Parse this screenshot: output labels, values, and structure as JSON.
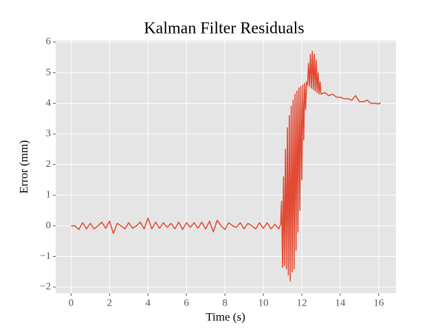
{
  "chart_data": {
    "type": "line",
    "title": "Kalman Filter Residuals",
    "x_label": "Time (s)",
    "y_label": "Error (mm)",
    "xlim": [
      -0.8,
      16.9
    ],
    "ylim": [
      -2.2,
      6.05
    ],
    "xticks": [
      0,
      2,
      4,
      6,
      8,
      10,
      12,
      14,
      16
    ],
    "yticks": [
      {
        "value": -2,
        "label": "−2"
      },
      {
        "value": -1,
        "label": "−1"
      },
      0,
      1,
      2,
      3,
      4,
      5,
      6
    ],
    "grid": true,
    "series": [
      {
        "color": "#E24A33",
        "x": [
          0,
          0.2,
          0.4,
          0.6,
          0.8,
          1.0,
          1.2,
          1.4,
          1.6,
          1.8,
          2.0,
          2.2,
          2.4,
          2.6,
          2.8,
          3.0,
          3.2,
          3.4,
          3.6,
          3.8,
          4.0,
          4.2,
          4.4,
          4.6,
          4.8,
          5.0,
          5.2,
          5.4,
          5.6,
          5.8,
          6.0,
          6.2,
          6.4,
          6.6,
          6.8,
          7.0,
          7.2,
          7.4,
          7.6,
          7.8,
          8.0,
          8.2,
          8.4,
          8.6,
          8.8,
          9.0,
          9.2,
          9.4,
          9.6,
          9.8,
          10.0,
          10.2,
          10.4,
          10.6,
          10.8,
          10.9,
          10.95,
          11.0,
          11.05,
          11.1,
          11.15,
          11.2,
          11.25,
          11.3,
          11.35,
          11.4,
          11.45,
          11.5,
          11.55,
          11.6,
          11.65,
          11.7,
          11.75,
          11.8,
          11.85,
          11.9,
          11.95,
          12.0,
          12.05,
          12.1,
          12.15,
          12.2,
          12.25,
          12.3,
          12.35,
          12.4,
          12.45,
          12.5,
          12.55,
          12.6,
          12.65,
          12.7,
          12.75,
          12.8,
          12.85,
          12.9,
          12.95,
          13.0,
          13.2,
          13.4,
          13.6,
          13.8,
          14.0,
          14.2,
          14.4,
          14.6,
          14.8,
          15.0,
          15.2,
          15.4,
          15.6,
          15.8,
          16.0,
          16.1
        ],
        "values": [
          0,
          0,
          -0.12,
          0.1,
          -0.1,
          0.08,
          -0.1,
          0,
          0.12,
          -0.08,
          0.15,
          -0.25,
          0.08,
          0,
          -0.1,
          0.1,
          -0.08,
          0,
          0.12,
          -0.1,
          0.25,
          -0.1,
          0.12,
          -0.08,
          0.1,
          -0.05,
          0.08,
          -0.1,
          0.12,
          -0.12,
          0.1,
          -0.05,
          0.1,
          -0.08,
          0.12,
          -0.1,
          0.15,
          -0.2,
          0.18,
          0,
          -0.12,
          0.1,
          0,
          -0.05,
          0.1,
          -0.1,
          0.08,
          0,
          -0.1,
          0.1,
          -0.08,
          0.1,
          -0.1,
          0.05,
          -0.1,
          0.05,
          0.8,
          -1.35,
          1.6,
          -1.3,
          2.5,
          -1.4,
          3.2,
          -1.6,
          3.6,
          -1.8,
          3.9,
          -1.5,
          4.1,
          -1.4,
          4.3,
          -0.8,
          4.4,
          -0.2,
          4.5,
          0.5,
          4.55,
          1.5,
          4.6,
          2.8,
          4.65,
          3.8,
          4.7,
          4.6,
          5.3,
          4.55,
          5.6,
          4.5,
          5.7,
          4.45,
          5.6,
          4.4,
          5.4,
          4.35,
          5.0,
          4.3,
          4.7,
          4.3,
          4.35,
          4.25,
          4.3,
          4.2,
          4.2,
          4.15,
          4.15,
          4.1,
          4.25,
          4.05,
          4.05,
          4.1,
          4.0,
          4.0,
          3.98,
          4.02
        ]
      }
    ]
  }
}
